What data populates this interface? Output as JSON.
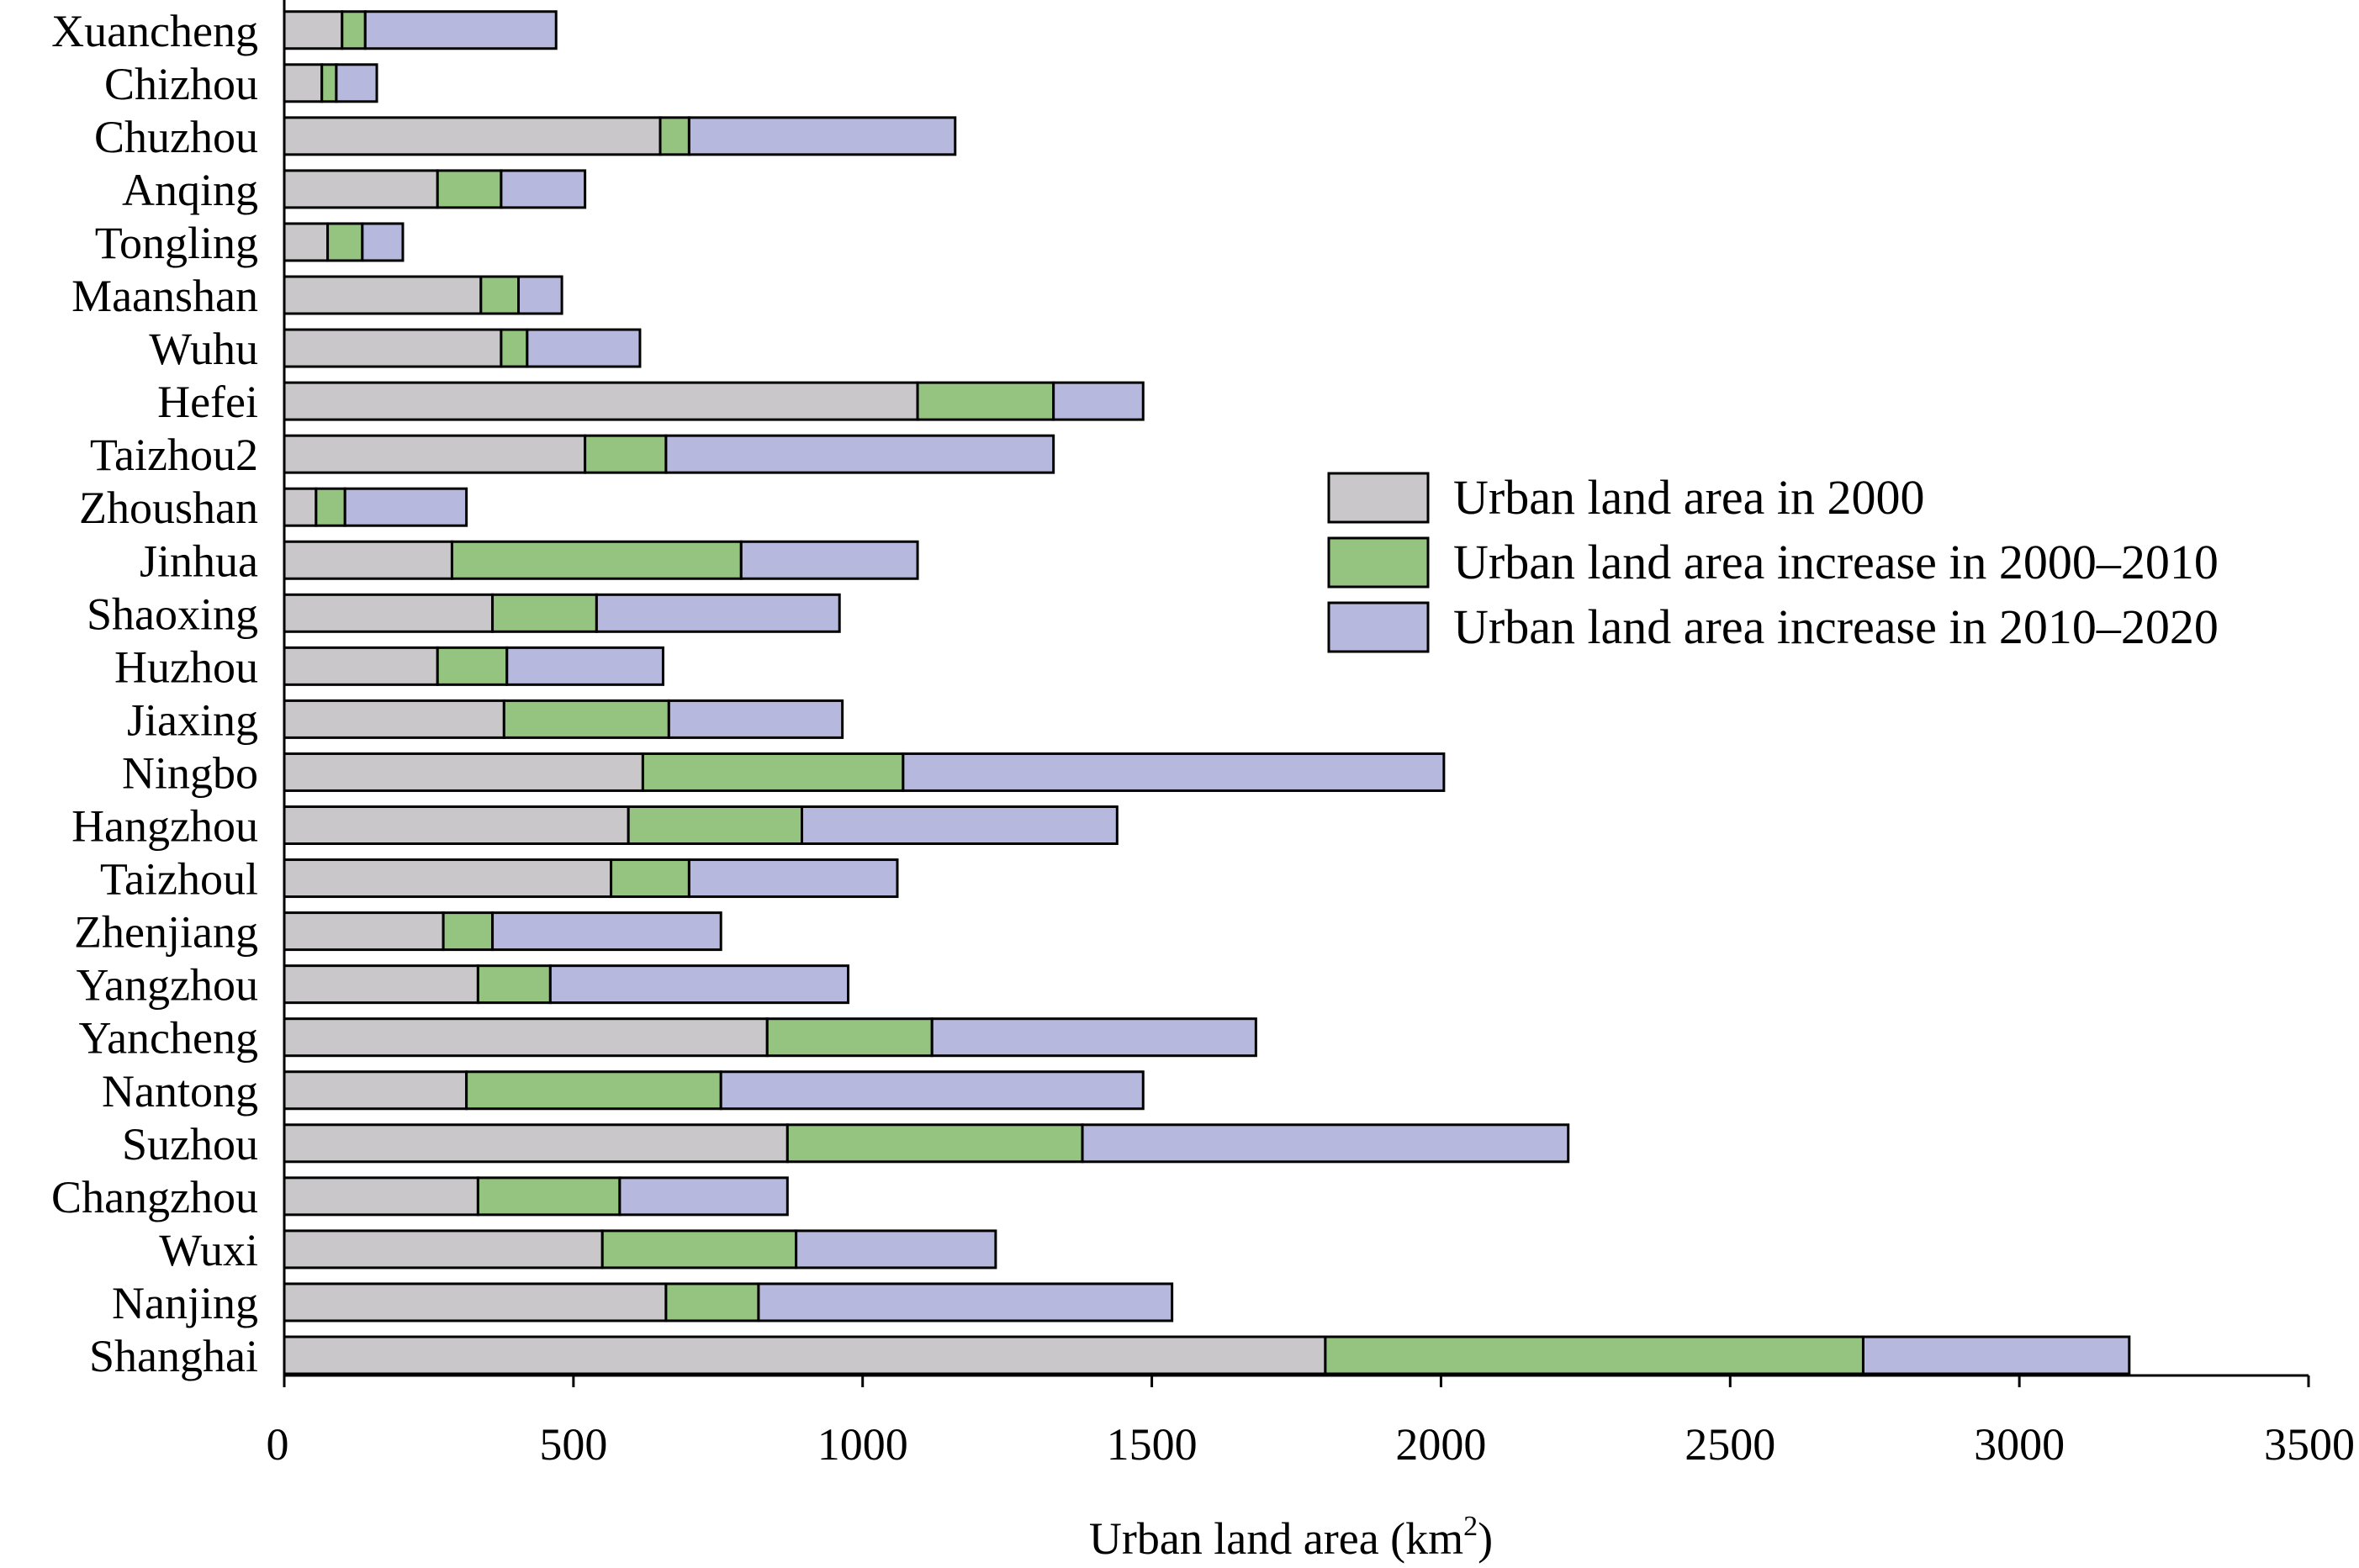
{
  "chart_data": {
    "type": "bar",
    "orientation": "horizontal",
    "stacked": true,
    "xlabel": "Urban land area (km",
    "xlabel_sup": "2",
    "xlabel_close": ")",
    "xlim": [
      0,
      3500
    ],
    "xticks": [
      "0",
      "500",
      "1000",
      "1500",
      "2000",
      "2500",
      "3000",
      "3500"
    ],
    "grid": false,
    "legend_position": "center-right",
    "categories": [
      "Shanghai",
      "Nanjing",
      "Wuxi",
      "Changzhou",
      "Suzhou",
      "Nantong",
      "Yancheng",
      "Yangzhou",
      "Zhenjiang",
      "Taizhoul",
      "Hangzhou",
      "Ningbo",
      "Jiaxing",
      "Huzhou",
      "Shaoxing",
      "Jinhua",
      "Zhoushan",
      "Taizhou2",
      "Hefei",
      "Wuhu",
      "Maanshan",
      "Tongling",
      "Anqing",
      "Chuzhou",
      "Chizhou",
      "Xuancheng"
    ],
    "series": [
      {
        "name": "Urban land area in 2000",
        "color": "#c9c7ca",
        "values": [
          1800,
          660,
          550,
          335,
          870,
          315,
          835,
          335,
          275,
          565,
          595,
          620,
          380,
          265,
          360,
          290,
          55,
          520,
          1095,
          375,
          340,
          75,
          265,
          650,
          65,
          100
        ]
      },
      {
        "name": "Urban land area increase in 2000–2010",
        "color": "#94c47f",
        "values": [
          930,
          160,
          335,
          245,
          510,
          440,
          285,
          125,
          85,
          135,
          300,
          450,
          285,
          120,
          180,
          500,
          50,
          140,
          235,
          45,
          65,
          60,
          110,
          50,
          25,
          40
        ]
      },
      {
        "name": "Urban land area increase in 2010–2020",
        "color": "#b6b8dd",
        "values": [
          460,
          715,
          345,
          290,
          840,
          730,
          560,
          515,
          395,
          360,
          545,
          935,
          300,
          270,
          420,
          305,
          210,
          670,
          155,
          195,
          75,
          70,
          145,
          460,
          70,
          330
        ]
      }
    ]
  }
}
